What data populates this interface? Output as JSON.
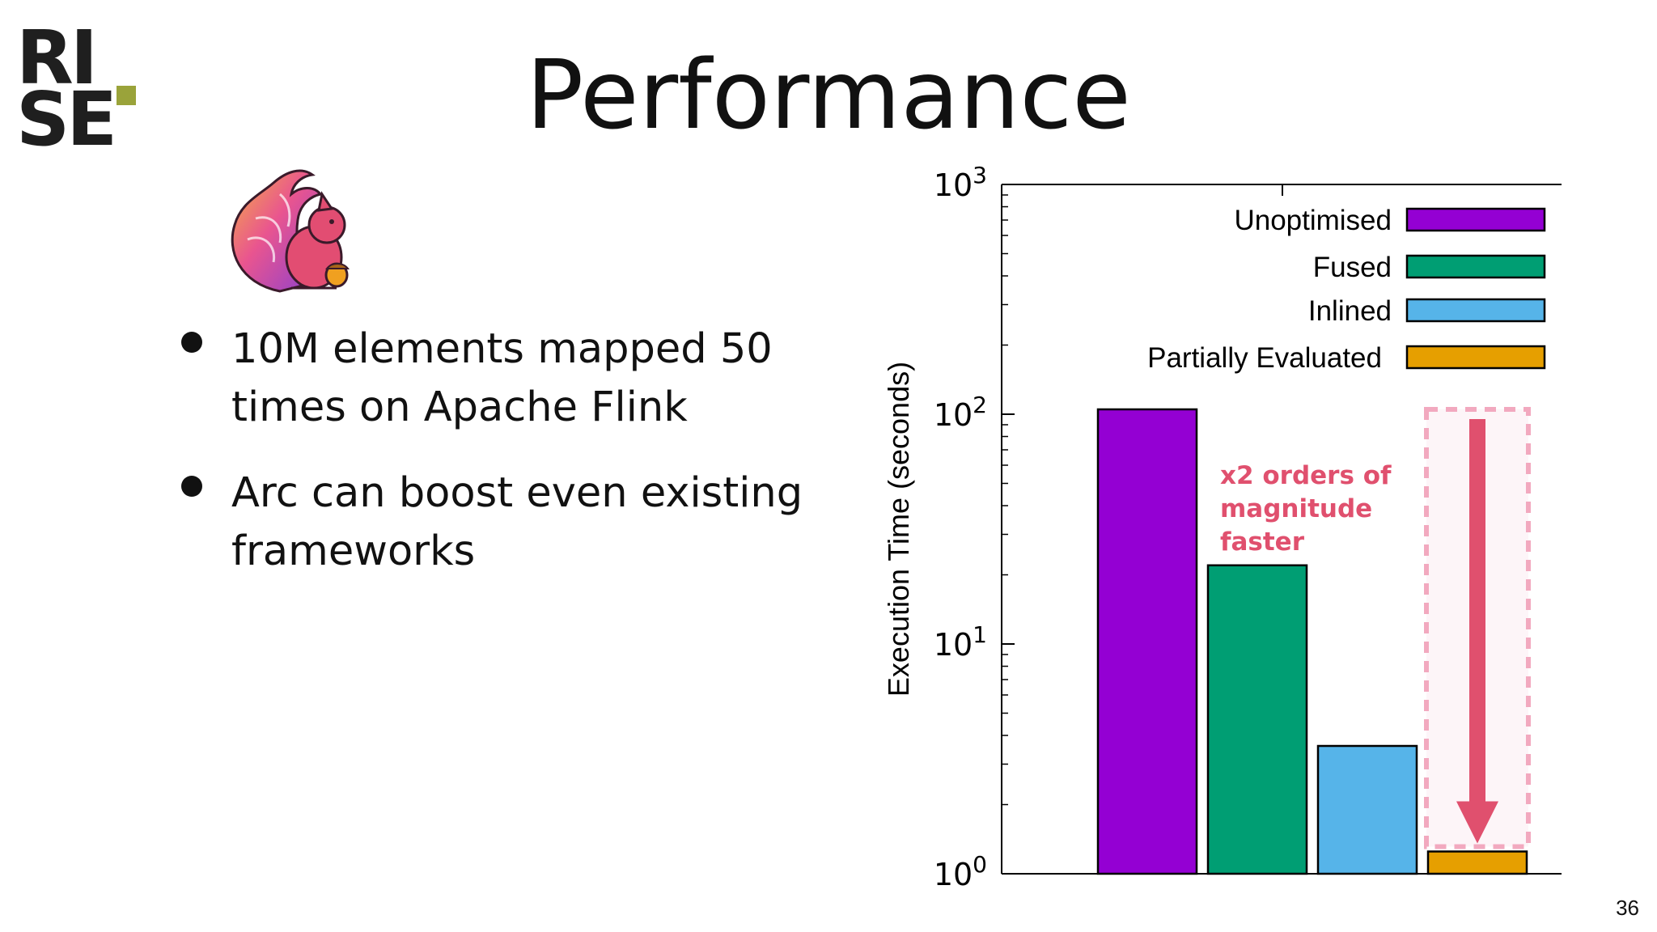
{
  "logo": {
    "line1": "RI",
    "line2": "SE",
    "dot_color": "#9aa33a"
  },
  "title": "Performance",
  "mascot": {
    "icon": "apache-flink-squirrel-icon"
  },
  "bullets": [
    {
      "text": "10M elements mapped 50 times on Apache Flink"
    },
    {
      "text": "Arc can boost even existing frameworks"
    }
  ],
  "page_number": "36",
  "chart_data": {
    "type": "bar",
    "scale": "log",
    "ylabel": "Execution Time (seconds)",
    "xlabel": "",
    "ylim": [
      1,
      1000
    ],
    "y_ticks": [
      {
        "value": 1,
        "base": "10",
        "exp": "0"
      },
      {
        "value": 10,
        "base": "10",
        "exp": "1"
      },
      {
        "value": 100,
        "base": "10",
        "exp": "2"
      },
      {
        "value": 1000,
        "base": "10",
        "exp": "3"
      }
    ],
    "legend_position": "top-right",
    "series": [
      {
        "name": "Unoptimised",
        "value": 105,
        "color": "#9400d3"
      },
      {
        "name": "Fused",
        "value": 22,
        "color": "#009e73"
      },
      {
        "name": "Inlined",
        "value": 3.6,
        "color": "#56b4e9"
      },
      {
        "name": "Partially Evaluated",
        "value": 1.25,
        "color": "#e69f00"
      }
    ],
    "annotation": {
      "lines": [
        "x2 orders of",
        "magnitude",
        "faster"
      ],
      "color": "#e0506e"
    }
  }
}
